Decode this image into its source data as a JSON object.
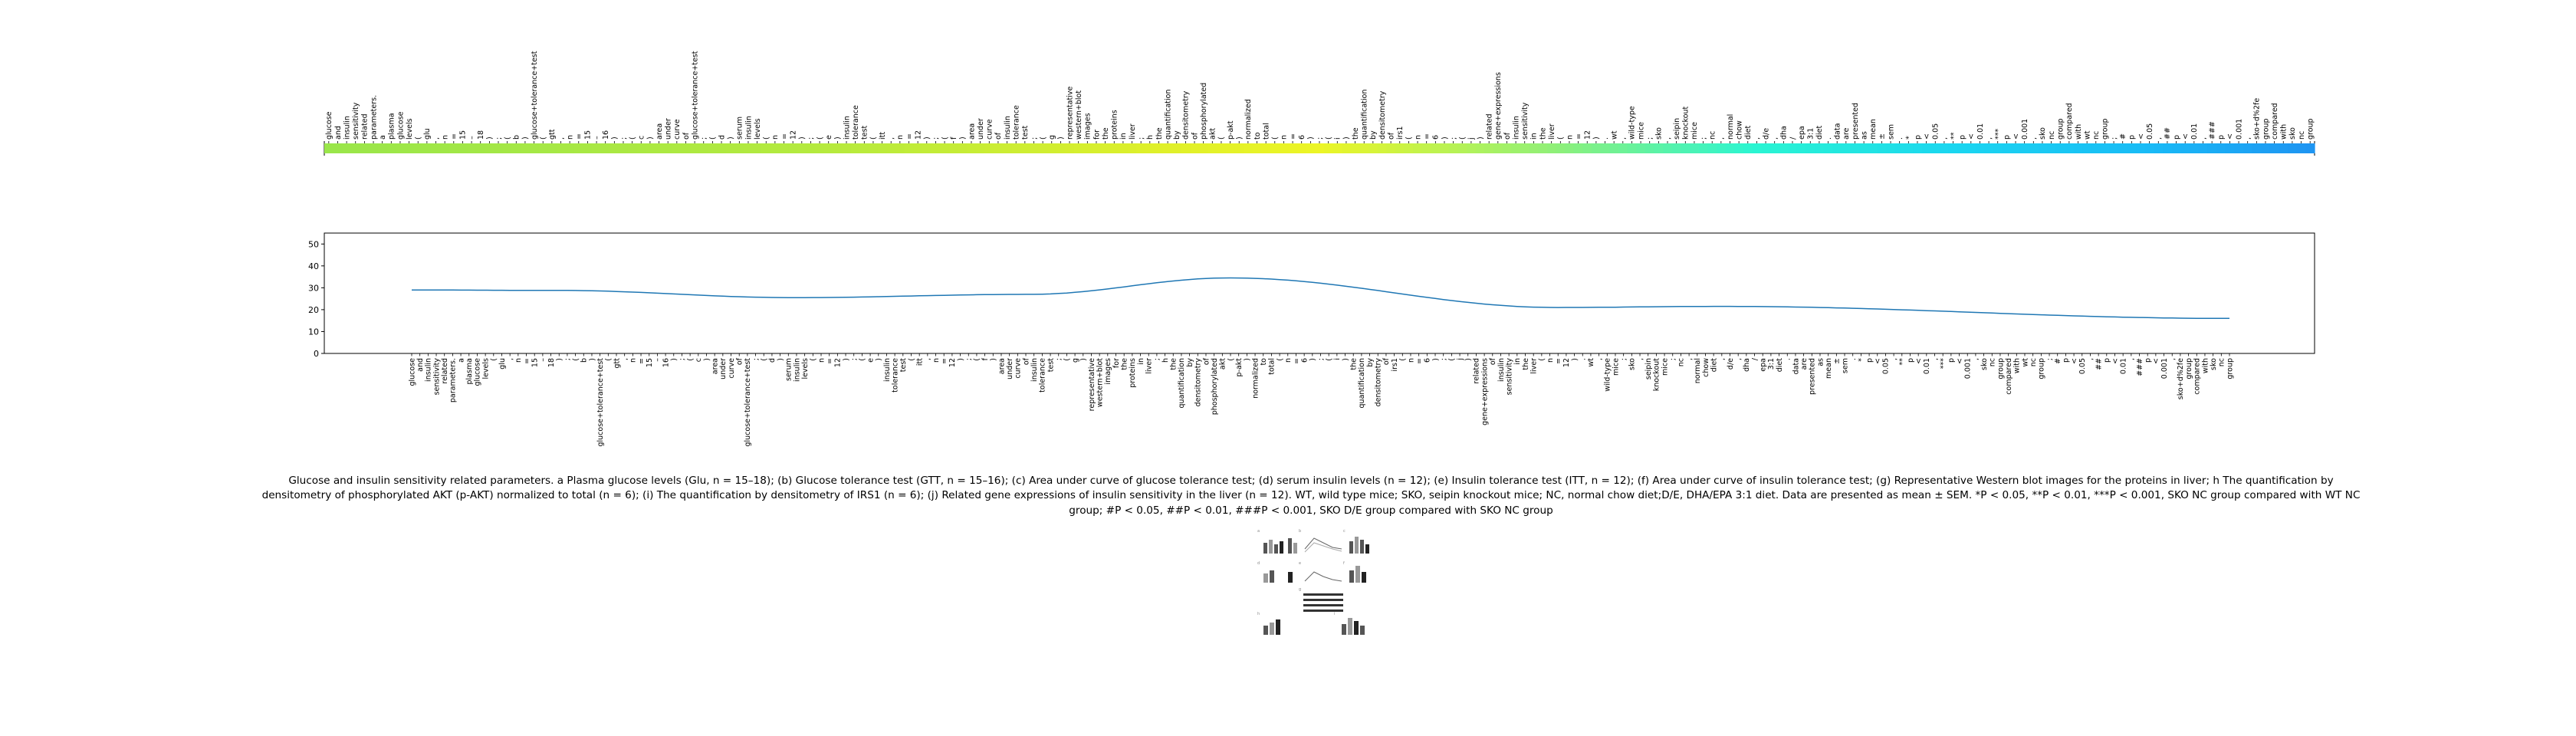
{
  "chart_data": [
    {
      "type": "heatmap",
      "tokens": [
        "glucose",
        "and",
        "insulin",
        "sensitivity",
        "related",
        "parameters.",
        "a",
        "plasma",
        "glucose",
        "levels",
        "(",
        "glu",
        ",",
        "n",
        "=",
        "15",
        "–",
        "18",
        ")",
        ";",
        "(",
        "b",
        ")",
        "glucose+tolerance+test",
        "(",
        "gtt",
        ",",
        "n",
        "=",
        "15",
        "–",
        "16",
        ")",
        ";",
        "(",
        "c",
        ")",
        "area",
        "under",
        "curve",
        "of",
        "glucose+tolerance+test",
        ";",
        "(",
        "d",
        ")",
        "serum",
        "insulin",
        "levels",
        "(",
        "n",
        "=",
        "12",
        ")",
        ";",
        "(",
        "e",
        ")",
        "insulin",
        "tolerance",
        "test",
        "(",
        "itt",
        ",",
        "n",
        "=",
        "12",
        ")",
        ";",
        "(",
        "f",
        ")",
        "area",
        "under",
        "curve",
        "of",
        "insulin",
        "tolerance",
        "test",
        ";",
        "(",
        "g",
        ")",
        "representative",
        "western+blot",
        "images",
        "for",
        "the",
        "proteins",
        "in",
        "liver",
        ";",
        "h",
        "the",
        "quantification",
        "by",
        "densitometry",
        "of",
        "phosphorylated",
        "akt",
        "(",
        "p-akt",
        ")",
        "normalized",
        "to",
        "total",
        "(",
        "n",
        "=",
        "6",
        ")",
        ";",
        "(",
        "i",
        ")",
        "the",
        "quantification",
        "by",
        "densitometry",
        "of",
        "irs1",
        "(",
        "n",
        "=",
        "6",
        ")",
        ";",
        "(",
        "j",
        ")",
        "related",
        "gene+expressions",
        "of",
        "insulin",
        "sensitivity",
        "in",
        "the",
        "liver",
        "(",
        "n",
        "=",
        "12",
        ")",
        ".",
        "wt",
        ",",
        "wild-type",
        "mice",
        ";",
        "sko",
        ",",
        "seipin",
        "knockout",
        "mice",
        ";",
        "nc",
        ",",
        "normal",
        "chow",
        "diet",
        ",",
        "d/e",
        ",",
        "dha",
        "/",
        "epa",
        "3:1",
        "diet",
        ".",
        "data",
        "are",
        "presented",
        "as",
        "mean",
        "±",
        "sem",
        ".",
        "*",
        "p",
        "<",
        "0.05",
        ",",
        "**",
        "p",
        "<",
        "0.01",
        ",",
        "***",
        "p",
        "<",
        "0.001",
        ",",
        "sko",
        "nc",
        "group",
        "compared",
        "with",
        "wt",
        "nc",
        "group",
        ";",
        "#",
        "p",
        "<",
        "0.05",
        ",",
        "##",
        "p",
        "<",
        "0.01",
        ",",
        "###",
        "p",
        "<",
        "0.001",
        ",",
        "sko+d%2fe",
        "group",
        "compared",
        "with",
        "sko",
        "nc",
        "group"
      ],
      "color_stops": [
        [
          0,
          "#9ae64a"
        ],
        [
          0.25,
          "#b5ea3e"
        ],
        [
          0.42,
          "#dff02a"
        ],
        [
          0.5,
          "#ecf526"
        ],
        [
          0.62,
          "#8ef07a"
        ],
        [
          0.72,
          "#2af5d2"
        ],
        [
          0.82,
          "#1ad6f0"
        ],
        [
          0.92,
          "#19baf6"
        ],
        [
          1,
          "#1e95f2"
        ]
      ]
    },
    {
      "type": "line",
      "y_points": [
        [
          0,
          29
        ],
        [
          0.08,
          28.8
        ],
        [
          0.21,
          25.5
        ],
        [
          0.34,
          27
        ],
        [
          0.45,
          34.5
        ],
        [
          0.63,
          21
        ],
        [
          0.72,
          21.5
        ],
        [
          1,
          16
        ]
      ],
      "ylim": [
        0,
        55
      ],
      "yticks": [
        0,
        10,
        20,
        30,
        40,
        50
      ],
      "color": "#1f77b4"
    }
  ],
  "caption": "Glucose and insulin sensitivity related parameters. a Plasma glucose levels (Glu, n = 15–18); (b) Glucose tolerance test (GTT, n = 15–16); (c) Area under curve of glucose tolerance test; (d) serum insulin levels (n = 12); (e) Insulin tolerance test (ITT, n = 12); (f) Area under curve of insulin tolerance test; (g) Representative Western blot images for the proteins in liver; h The quantification by densitometry of phosphorylated AKT (p-AKT) normalized to total (n = 6); (i) The quantification by densitometry of IRS1 (n = 6); (j) Related gene expressions of insulin sensitivity in the liver (n = 12). WT, wild type mice; SKO, seipin knockout mice; NC, normal chow diet;D/E, DHA/EPA 3:1 diet. Data are presented as mean ± SEM. *P < 0.05, **P < 0.01, ***P < 0.001, SKO NC group compared with WT NC group; #P < 0.05, ##P < 0.01, ###P < 0.001, SKO D/E group compared with SKO NC group"
}
